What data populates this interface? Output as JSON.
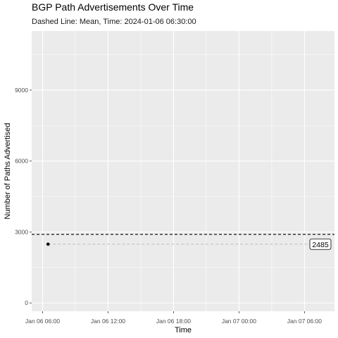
{
  "chart_data": {
    "type": "line",
    "title": "BGP Path Advertisements Over Time",
    "subtitle": "Dashed Line: Mean, Time: 2024-01-06 06:30:00",
    "xlabel": "Time",
    "ylabel": "Number of Paths Advertised",
    "x_ticks": [
      "Jan 06 06:00",
      "Jan 06 12:00",
      "Jan 06 18:00",
      "Jan 07 00:00",
      "Jan 07 06:00"
    ],
    "x_tick_times": [
      "2024-01-06T06:00:00",
      "2024-01-06T12:00:00",
      "2024-01-06T18:00:00",
      "2024-01-07T00:00:00",
      "2024-01-07T06:00:00"
    ],
    "x_range": [
      "2024-01-06T05:00:00",
      "2024-01-07T08:45:00"
    ],
    "y_ticks": [
      0,
      3000,
      6000,
      9000
    ],
    "ylim": [
      -350,
      11500
    ],
    "grid": true,
    "series": [
      {
        "values": [
          {
            "x": "2024-01-06T06:30:00",
            "y": 2485
          }
        ]
      }
    ],
    "mean_line": {
      "y": 2900
    },
    "reference_line": {
      "y": 2485,
      "label": "2485"
    },
    "colors": {
      "panel": "#ebebeb",
      "grid_major": "#ffffff",
      "point": "#000000",
      "mean_line": "#000000",
      "reference_line": "#bdbdbd"
    }
  }
}
